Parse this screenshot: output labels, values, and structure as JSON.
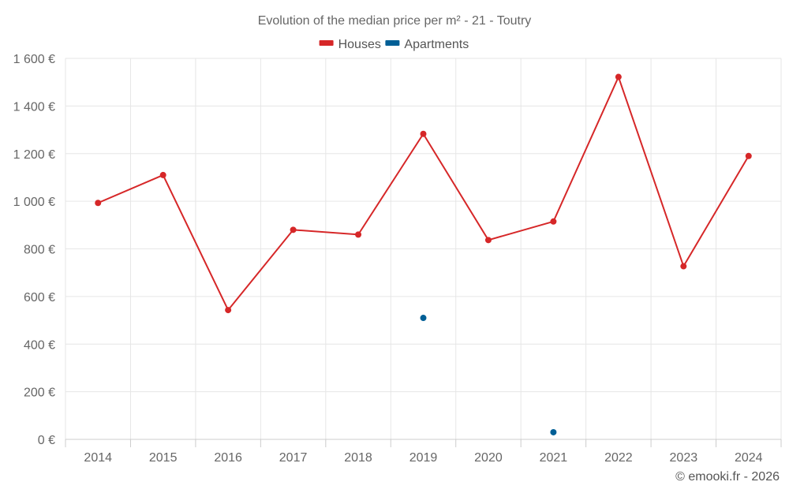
{
  "chart_data": {
    "type": "line",
    "title": "Evolution of the median price per m² - 21 - Toutry",
    "categories": [
      "2014",
      "2015",
      "2016",
      "2017",
      "2018",
      "2019",
      "2020",
      "2021",
      "2022",
      "2023",
      "2024"
    ],
    "series": [
      {
        "name": "Houses",
        "color": "#d62728",
        "values": [
          993,
          1110,
          543,
          880,
          860,
          1283,
          837,
          915,
          1522,
          727,
          1190
        ],
        "line": true
      },
      {
        "name": "Apartments",
        "color": "#005f96",
        "values": [
          null,
          null,
          null,
          null,
          null,
          510,
          null,
          30,
          null,
          null,
          null
        ],
        "line": false
      }
    ],
    "ylim": [
      0,
      1600
    ],
    "yticks": [
      0,
      200,
      400,
      600,
      800,
      1000,
      1200,
      1400,
      1600
    ],
    "ytick_labels": [
      "0 €",
      "200 €",
      "400 €",
      "600 €",
      "800 €",
      "1 000 €",
      "1 200 €",
      "1 400 €",
      "1 600 €"
    ],
    "xlabel": "",
    "ylabel": "",
    "grid": true,
    "legend_position": "top-center"
  },
  "credit": "© emooki.fr - 2026"
}
